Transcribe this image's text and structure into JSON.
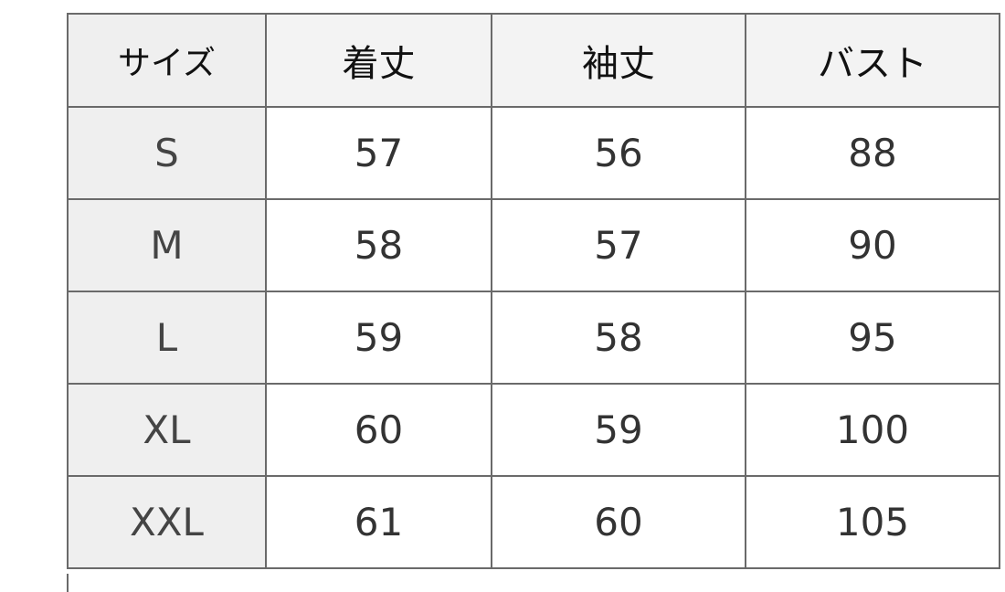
{
  "table": {
    "headers": [
      "サイズ",
      "着丈",
      "袖丈",
      "バスト"
    ],
    "rows": [
      [
        "S",
        "57",
        "56",
        "88"
      ],
      [
        "M",
        "58",
        "57",
        "90"
      ],
      [
        "L",
        "59",
        "58",
        "95"
      ],
      [
        "XL",
        "60",
        "59",
        "100"
      ],
      [
        "XXL",
        "61",
        "60",
        "105"
      ]
    ]
  }
}
